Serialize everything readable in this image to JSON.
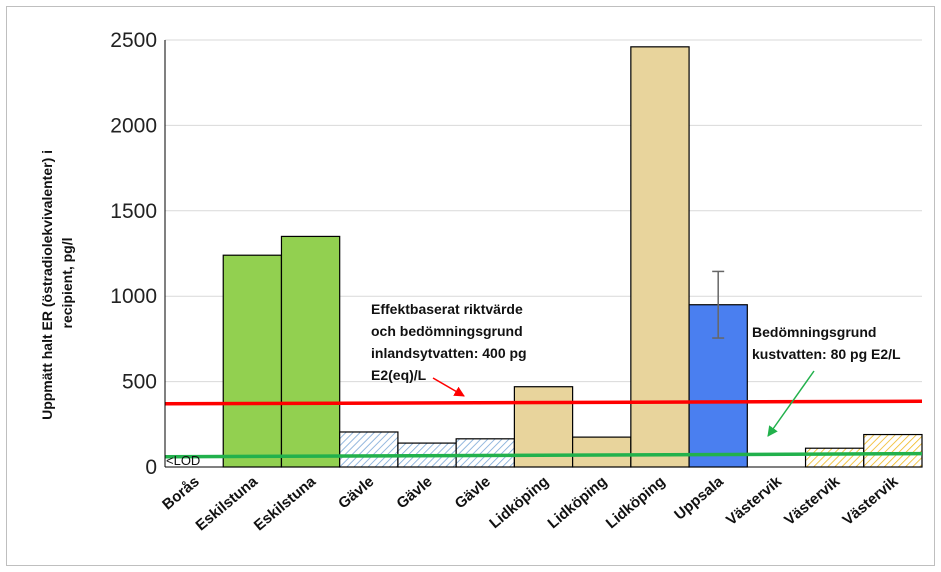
{
  "chart_data": {
    "type": "bar",
    "title": "",
    "xlabel": "",
    "ylabel_lines": [
      "Uppmätt halt ER (östradiolekvivalenter) i",
      "recipient, pg/l"
    ],
    "ylim": [
      0,
      2500
    ],
    "yticks": [
      0,
      500,
      1000,
      1500,
      2000,
      2500
    ],
    "grid": true,
    "categories": [
      "Borås",
      "Eskilstuna",
      "Eskilstuna",
      "Gävle",
      "Gävle",
      "Gävle",
      "Lidköping",
      "Lidköping",
      "Lidköping",
      "Uppsala",
      "Västervik",
      "Västervik",
      "Västervik"
    ],
    "values": [
      0,
      1240,
      1350,
      205,
      140,
      165,
      470,
      175,
      2460,
      950,
      0,
      110,
      190
    ],
    "bar_styles": [
      "none",
      "solid",
      "solid",
      "hatch",
      "hatch",
      "hatch",
      "solid",
      "solid",
      "solid",
      "solid",
      "hatch",
      "hatch",
      "hatch"
    ],
    "bar_colors": [
      "#ffffff",
      "#92d050",
      "#92d050",
      "#9dc3e6",
      "#9dc3e6",
      "#9dc3e6",
      "#e8d49c",
      "#e8d49c",
      "#e8d49c",
      "#4a7ff0",
      "#f0c030",
      "#f0c030",
      "#f0c030"
    ],
    "error_bars": [
      {
        "index": 9,
        "low": 755,
        "high": 1145
      }
    ],
    "reference_lines": [
      {
        "color": "#ff0000",
        "y_start": 370,
        "y_end": 385
      },
      {
        "color": "#22b14c",
        "y_start": 60,
        "y_end": 78
      }
    ],
    "annotations": [
      {
        "lines": [
          "Effektbaserat riktvärde",
          "och bedömningsgrund",
          "inlandsytvatten: 400 pg",
          "E2(eq)/L"
        ],
        "color": "#ff0000"
      },
      {
        "lines": [
          "Bedömningsgrund",
          "kustvatten: 80 pg E2/L"
        ],
        "color": "#22b14c"
      }
    ],
    "lod_label": "<LOD"
  }
}
